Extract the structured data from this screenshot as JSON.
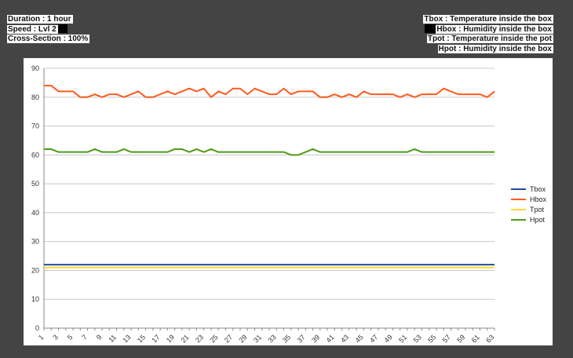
{
  "info_left": {
    "duration": "Duration : 1 hour",
    "speed": "Speed : Lvl  2",
    "cross_section": "Cross-Section :  100%"
  },
  "info_right": {
    "tbox": "Tbox : Temperature inside the box",
    "hbox": "Hbox : Humidity inside the box",
    "tpot": "Tpot : Temperature inside the pot",
    "hpot": "Hpot : Humidity inside the box"
  },
  "chart_data": {
    "type": "line",
    "title": "",
    "xlabel": "",
    "ylabel": "",
    "ylim": [
      0,
      90
    ],
    "yticks": [
      0,
      10,
      20,
      30,
      40,
      50,
      60,
      70,
      80,
      90
    ],
    "x_count": 63,
    "xticks": [
      1,
      3,
      5,
      7,
      9,
      11,
      13,
      15,
      17,
      19,
      21,
      23,
      25,
      27,
      29,
      31,
      33,
      35,
      37,
      39,
      41,
      43,
      45,
      47,
      49,
      51,
      53,
      55,
      57,
      59,
      61,
      63
    ],
    "grid": "horizontal",
    "legend_position": "right",
    "series": [
      {
        "name": "Tbox",
        "color": "#1f4e99",
        "values": [
          22,
          22,
          22,
          22,
          22,
          22,
          22,
          22,
          22,
          22,
          22,
          22,
          22,
          22,
          22,
          22,
          22,
          22,
          22,
          22,
          22,
          22,
          22,
          22,
          22,
          22,
          22,
          22,
          22,
          22,
          22,
          22,
          22,
          22,
          22,
          22,
          22,
          22,
          22,
          22,
          22,
          22,
          22,
          22,
          22,
          22,
          22,
          22,
          22,
          22,
          22,
          22,
          22,
          22,
          22,
          22,
          22,
          22,
          22,
          22,
          22,
          22,
          22
        ]
      },
      {
        "name": "Hbox",
        "color": "#ff5a1f",
        "values": [
          84,
          84,
          82,
          82,
          82,
          80,
          80,
          81,
          80,
          81,
          81,
          80,
          81,
          82,
          80,
          80,
          81,
          82,
          81,
          82,
          83,
          82,
          83,
          80,
          82,
          81,
          83,
          83,
          81,
          83,
          82,
          81,
          81,
          83,
          81,
          82,
          82,
          82,
          80,
          80,
          81,
          80,
          81,
          80,
          82,
          81,
          81,
          81,
          81,
          80,
          81,
          80,
          81,
          81,
          81,
          83,
          82,
          81,
          81,
          81,
          81,
          80,
          82
        ]
      },
      {
        "name": "Tpot",
        "color": "#ffd92e",
        "values": [
          21,
          21,
          21,
          21,
          21,
          21,
          21,
          21,
          21,
          21,
          21,
          21,
          21,
          21,
          21,
          21,
          21,
          21,
          21,
          21,
          21,
          21,
          21,
          21,
          21,
          21,
          21,
          21,
          21,
          21,
          21,
          21,
          21,
          21,
          21,
          21,
          21,
          21,
          21,
          21,
          21,
          21,
          21,
          21,
          21,
          21,
          21,
          21,
          21,
          21,
          21,
          21,
          21,
          21,
          21,
          21,
          21,
          21,
          21,
          21,
          21,
          21,
          21
        ]
      },
      {
        "name": "Hpot",
        "color": "#4e9a16",
        "values": [
          62,
          62,
          61,
          61,
          61,
          61,
          61,
          62,
          61,
          61,
          61,
          62,
          61,
          61,
          61,
          61,
          61,
          61,
          62,
          62,
          61,
          62,
          61,
          62,
          61,
          61,
          61,
          61,
          61,
          61,
          61,
          61,
          61,
          61,
          60,
          60,
          61,
          62,
          61,
          61,
          61,
          61,
          61,
          61,
          61,
          61,
          61,
          61,
          61,
          61,
          61,
          62,
          61,
          61,
          61,
          61,
          61,
          61,
          61,
          61,
          61,
          61,
          61
        ]
      }
    ]
  }
}
